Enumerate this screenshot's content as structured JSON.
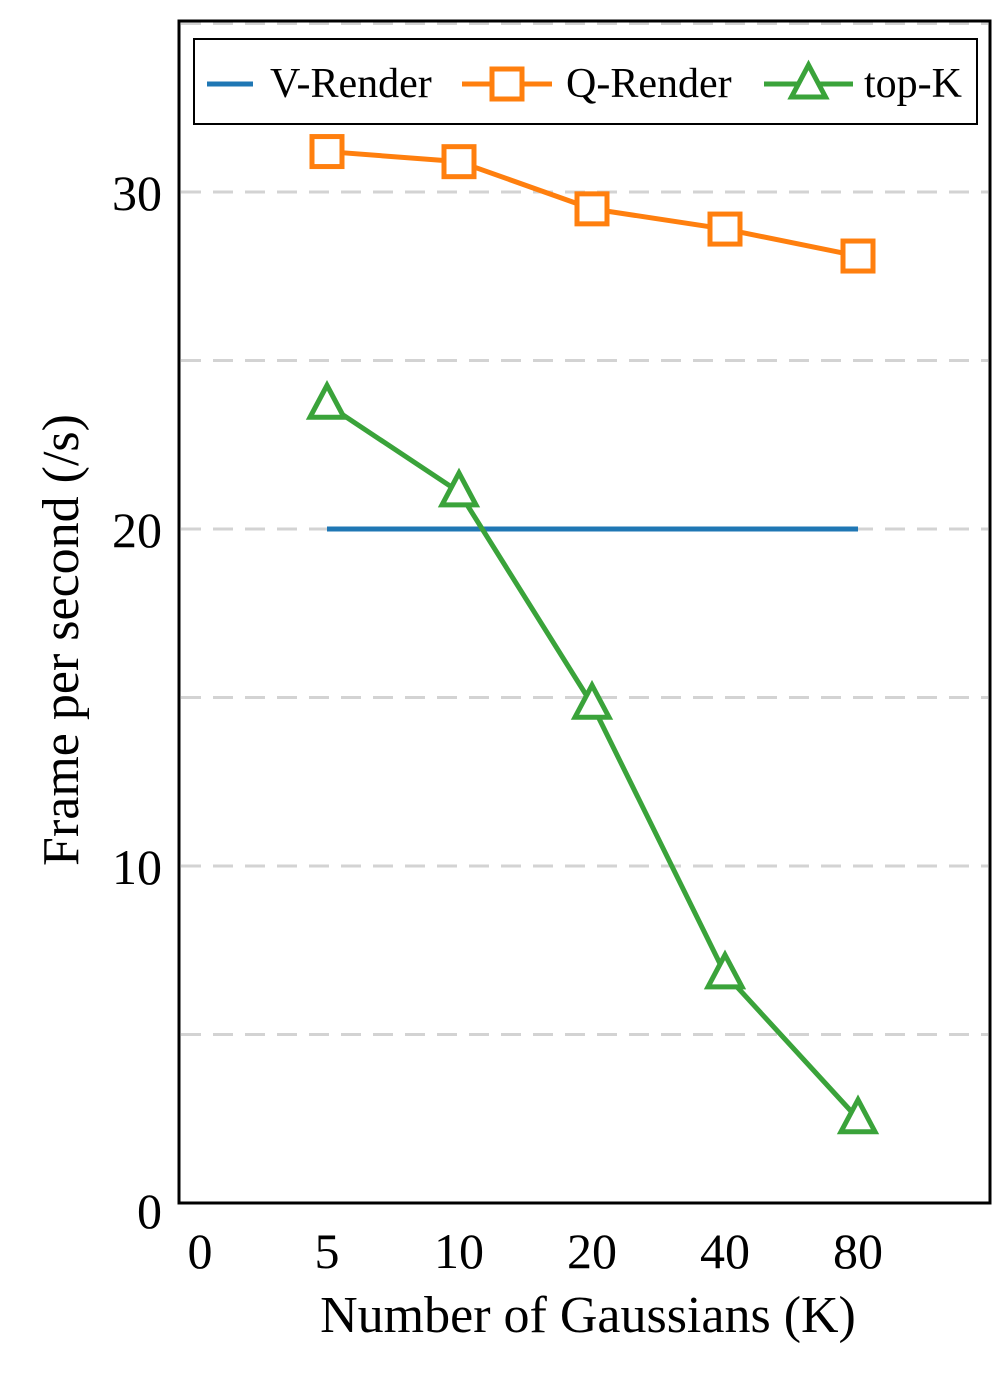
{
  "chart_data": {
    "type": "line",
    "categories": [
      "0",
      "5",
      "10",
      "20",
      "40",
      "80"
    ],
    "xlabel": "Number of Gaussians (K)",
    "ylabel": "Frame per second (/s)",
    "ylim": [
      0,
      35
    ],
    "yticks": [
      "0",
      "10",
      "20",
      "30"
    ],
    "grid": "horizontal dashed",
    "legend_position": "top",
    "series": [
      {
        "name": "V-Render",
        "color": "#1f77b4",
        "marker": "none",
        "x": [
          "5",
          "10",
          "20",
          "40",
          "80"
        ],
        "values": [
          20,
          20,
          20,
          20,
          20
        ]
      },
      {
        "name": "Q-Render",
        "color": "#ff7f0e",
        "marker": "square",
        "x": [
          "5",
          "10",
          "20",
          "40",
          "80"
        ],
        "values": [
          31.2,
          30.9,
          29.5,
          28.9,
          28.1
        ]
      },
      {
        "name": "top-K",
        "color": "#3aa33a",
        "marker": "triangle",
        "x": [
          "5",
          "10",
          "20",
          "40",
          "80"
        ],
        "values": [
          23.7,
          21.1,
          14.8,
          6.8,
          2.5
        ]
      }
    ]
  }
}
